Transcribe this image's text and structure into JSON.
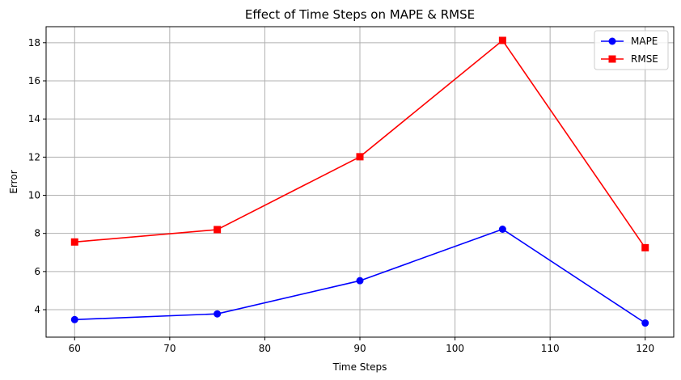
{
  "chart_data": {
    "type": "line",
    "title": "Effect of Time Steps on MAPE & RMSE",
    "xlabel": "Time Steps",
    "ylabel": "Error",
    "x": [
      60,
      75,
      90,
      105,
      120
    ],
    "xlim": [
      57,
      123
    ],
    "ylim": [
      2.56,
      18.84
    ],
    "xticks": [
      60,
      70,
      80,
      90,
      100,
      110,
      120
    ],
    "yticks": [
      4,
      6,
      8,
      10,
      12,
      14,
      16,
      18
    ],
    "grid": true,
    "legend_position": "top-right",
    "series": [
      {
        "name": "MAPE",
        "values": [
          3.48,
          3.78,
          5.52,
          8.22,
          3.3
        ],
        "color": "#0000ff",
        "marker": "circle"
      },
      {
        "name": "RMSE",
        "values": [
          7.55,
          8.2,
          12.02,
          18.12,
          7.25
        ],
        "color": "#ff0000",
        "marker": "square"
      }
    ]
  }
}
